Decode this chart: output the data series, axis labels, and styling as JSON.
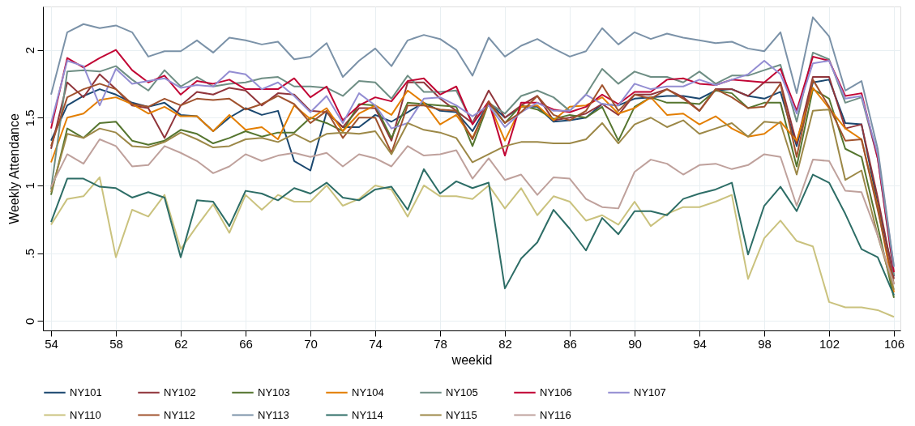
{
  "chart_data": {
    "type": "line",
    "xlabel": "weekid",
    "ylabel": "Weekly Attendance",
    "x": [
      54,
      55,
      56,
      57,
      58,
      59,
      60,
      61,
      62,
      63,
      64,
      65,
      66,
      67,
      68,
      69,
      70,
      71,
      72,
      73,
      74,
      75,
      76,
      77,
      78,
      79,
      80,
      81,
      82,
      83,
      84,
      85,
      86,
      87,
      88,
      89,
      90,
      91,
      92,
      93,
      94,
      95,
      96,
      97,
      98,
      99,
      100,
      101,
      102,
      103,
      104,
      105,
      106
    ],
    "xlim": [
      53.5,
      106.4
    ],
    "xticks": [
      54,
      58,
      62,
      66,
      70,
      74,
      78,
      82,
      86,
      90,
      94,
      98,
      102,
      106
    ],
    "ylim": [
      -0.07,
      2.32
    ],
    "yticks": [
      0,
      {
        "value": 0.5,
        "label": ".5"
      },
      1,
      1.5,
      2
    ],
    "grid": true,
    "legend": "bottom",
    "marker": "none",
    "line_style": "solid",
    "series": [
      {
        "name": "NY101",
        "color": "#1a476f",
        "values": [
          1.33,
          1.59,
          1.66,
          1.71,
          1.67,
          1.61,
          1.58,
          1.61,
          1.52,
          1.51,
          1.4,
          1.5,
          1.57,
          1.52,
          1.55,
          1.18,
          1.11,
          1.54,
          1.43,
          1.43,
          1.52,
          1.47,
          1.54,
          1.61,
          1.55,
          1.54,
          1.4,
          1.61,
          1.5,
          1.58,
          1.58,
          1.47,
          1.48,
          1.5,
          1.6,
          1.59,
          1.64,
          1.65,
          1.66,
          1.66,
          1.64,
          1.7,
          1.71,
          1.66,
          1.64,
          1.69,
          1.29,
          1.76,
          1.78,
          1.46,
          1.45,
          0.86,
          0.33
        ]
      },
      {
        "name": "NY102",
        "color": "#90353b",
        "values": [
          1.27,
          1.76,
          1.65,
          1.82,
          1.71,
          1.59,
          1.57,
          1.35,
          1.59,
          1.69,
          1.67,
          1.72,
          1.7,
          1.59,
          1.68,
          1.67,
          1.55,
          1.54,
          1.43,
          1.57,
          1.57,
          1.33,
          1.76,
          1.76,
          1.64,
          1.55,
          1.46,
          1.7,
          1.5,
          1.59,
          1.66,
          1.48,
          1.5,
          1.53,
          1.6,
          1.52,
          1.67,
          1.67,
          1.71,
          1.65,
          1.55,
          1.71,
          1.71,
          1.66,
          1.76,
          1.76,
          1.31,
          1.8,
          1.8,
          1.42,
          1.45,
          0.91,
          0.31
        ]
      },
      {
        "name": "NY103",
        "color": "#55752f",
        "values": [
          0.93,
          1.42,
          1.35,
          1.46,
          1.47,
          1.33,
          1.3,
          1.33,
          1.41,
          1.38,
          1.31,
          1.35,
          1.4,
          1.36,
          1.39,
          1.39,
          1.5,
          1.46,
          1.4,
          1.6,
          1.59,
          1.35,
          1.61,
          1.6,
          1.59,
          1.58,
          1.29,
          1.61,
          1.46,
          1.59,
          1.56,
          1.49,
          1.52,
          1.5,
          1.58,
          1.33,
          1.58,
          1.65,
          1.61,
          1.61,
          1.6,
          1.7,
          1.68,
          1.57,
          1.61,
          1.61,
          1.14,
          1.71,
          1.64,
          1.27,
          1.21,
          0.7,
          0.17
        ]
      },
      {
        "name": "NY104",
        "color": "#e37e00",
        "values": [
          1.17,
          1.5,
          1.53,
          1.63,
          1.65,
          1.6,
          1.53,
          1.58,
          1.51,
          1.51,
          1.4,
          1.52,
          1.41,
          1.43,
          1.34,
          1.59,
          1.49,
          1.57,
          1.4,
          1.53,
          1.59,
          1.52,
          1.7,
          1.61,
          1.45,
          1.52,
          1.35,
          1.61,
          1.33,
          1.58,
          1.59,
          1.48,
          1.58,
          1.59,
          1.65,
          1.53,
          1.57,
          1.65,
          1.52,
          1.53,
          1.45,
          1.51,
          1.42,
          1.36,
          1.38,
          1.47,
          1.33,
          1.72,
          1.57,
          1.42,
          1.34,
          0.84,
          0.21
        ]
      },
      {
        "name": "NY105",
        "color": "#6e8e84",
        "values": [
          0.97,
          1.84,
          1.85,
          1.84,
          1.88,
          1.78,
          1.7,
          1.85,
          1.73,
          1.8,
          1.73,
          1.75,
          1.76,
          1.79,
          1.8,
          1.73,
          1.73,
          1.72,
          1.66,
          1.77,
          1.76,
          1.64,
          1.81,
          1.69,
          1.69,
          1.7,
          1.46,
          1.61,
          1.53,
          1.66,
          1.7,
          1.65,
          1.55,
          1.67,
          1.86,
          1.75,
          1.84,
          1.8,
          1.8,
          1.76,
          1.84,
          1.75,
          1.81,
          1.81,
          1.85,
          1.89,
          1.47,
          1.98,
          1.93,
          1.61,
          1.65,
          1.2,
          0.34
        ]
      },
      {
        "name": "NY106",
        "color": "#c10534",
        "values": [
          1.42,
          1.94,
          1.87,
          1.94,
          2.0,
          1.85,
          1.76,
          1.81,
          1.67,
          1.77,
          1.75,
          1.78,
          1.71,
          1.71,
          1.71,
          1.79,
          1.65,
          1.73,
          1.48,
          1.59,
          1.65,
          1.62,
          1.77,
          1.79,
          1.67,
          1.73,
          1.45,
          1.62,
          1.22,
          1.61,
          1.61,
          1.56,
          1.54,
          1.58,
          1.67,
          1.6,
          1.69,
          1.69,
          1.78,
          1.79,
          1.75,
          1.74,
          1.78,
          1.77,
          1.76,
          1.86,
          1.55,
          1.95,
          1.92,
          1.66,
          1.68,
          1.2,
          0.36
        ]
      },
      {
        "name": "NY107",
        "color": "#938dd2",
        "values": [
          1.46,
          1.92,
          1.88,
          1.59,
          1.86,
          1.75,
          1.77,
          1.79,
          1.72,
          1.74,
          1.73,
          1.84,
          1.82,
          1.71,
          1.76,
          1.66,
          1.54,
          1.66,
          1.46,
          1.68,
          1.59,
          1.42,
          1.46,
          1.64,
          1.65,
          1.59,
          1.51,
          1.59,
          1.43,
          1.54,
          1.61,
          1.55,
          1.55,
          1.67,
          1.6,
          1.59,
          1.75,
          1.71,
          1.73,
          1.73,
          1.78,
          1.74,
          1.78,
          1.82,
          1.92,
          1.82,
          1.53,
          1.9,
          1.92,
          1.64,
          1.66,
          1.23,
          0.4
        ]
      },
      {
        "name": "NY110",
        "color": "#cac27e",
        "values": [
          0.71,
          0.9,
          0.92,
          1.06,
          0.47,
          0.82,
          0.77,
          0.93,
          0.53,
          0.7,
          0.86,
          0.65,
          0.93,
          0.82,
          0.93,
          0.88,
          0.88,
          1.0,
          0.85,
          0.9,
          1.0,
          0.97,
          0.77,
          1.0,
          0.92,
          0.92,
          0.9,
          1.0,
          0.83,
          0.98,
          0.78,
          0.92,
          0.88,
          0.74,
          0.78,
          0.71,
          0.88,
          0.7,
          0.79,
          0.84,
          0.84,
          0.88,
          0.93,
          0.31,
          0.61,
          0.74,
          0.59,
          0.55,
          0.14,
          0.1,
          0.1,
          0.08,
          0.03
        ]
      },
      {
        "name": "NY112",
        "color": "#a0522d",
        "values": [
          1.29,
          1.65,
          1.71,
          1.75,
          1.71,
          1.6,
          1.58,
          1.64,
          1.59,
          1.64,
          1.63,
          1.64,
          1.56,
          1.6,
          1.66,
          1.6,
          1.46,
          1.55,
          1.35,
          1.5,
          1.5,
          1.24,
          1.59,
          1.59,
          1.56,
          1.55,
          1.34,
          1.62,
          1.46,
          1.54,
          1.66,
          1.52,
          1.48,
          1.55,
          1.74,
          1.55,
          1.67,
          1.64,
          1.71,
          1.64,
          1.55,
          1.71,
          1.65,
          1.57,
          1.58,
          1.75,
          1.21,
          1.78,
          1.58,
          1.33,
          1.34,
          0.82,
          0.27
        ]
      },
      {
        "name": "NY113",
        "color": "#7b92a8",
        "values": [
          1.67,
          2.13,
          2.19,
          2.16,
          2.18,
          2.13,
          1.95,
          1.99,
          1.99,
          2.07,
          1.98,
          2.09,
          2.07,
          2.04,
          2.06,
          1.93,
          1.95,
          2.05,
          1.8,
          1.92,
          2.01,
          1.88,
          2.07,
          2.11,
          2.08,
          2.0,
          1.81,
          2.09,
          1.95,
          2.03,
          2.08,
          2.01,
          1.95,
          1.99,
          2.16,
          2.04,
          2.13,
          2.08,
          2.12,
          2.09,
          2.07,
          2.05,
          2.06,
          2.01,
          1.99,
          2.13,
          1.68,
          2.24,
          2.1,
          1.7,
          1.77,
          1.27,
          0.4
        ]
      },
      {
        "name": "NY114",
        "color": "#2d6d66",
        "values": [
          0.73,
          1.05,
          1.05,
          0.99,
          0.98,
          0.91,
          0.95,
          0.91,
          0.47,
          0.89,
          0.88,
          0.7,
          0.96,
          0.94,
          0.89,
          0.98,
          0.94,
          1.02,
          0.91,
          0.89,
          0.97,
          0.99,
          0.82,
          1.12,
          0.94,
          1.03,
          0.98,
          1.02,
          0.24,
          0.46,
          0.58,
          0.82,
          0.68,
          0.52,
          0.76,
          0.64,
          0.81,
          0.81,
          0.78,
          0.9,
          0.94,
          0.97,
          1.02,
          0.49,
          0.85,
          0.99,
          0.81,
          1.08,
          1.02,
          0.79,
          0.53,
          0.47,
          0.19
        ]
      },
      {
        "name": "NY115",
        "color": "#9c8847",
        "values": [
          0.95,
          1.38,
          1.35,
          1.42,
          1.39,
          1.29,
          1.28,
          1.32,
          1.39,
          1.34,
          1.28,
          1.29,
          1.34,
          1.35,
          1.32,
          1.38,
          1.32,
          1.38,
          1.39,
          1.38,
          1.4,
          1.23,
          1.46,
          1.41,
          1.39,
          1.35,
          1.17,
          1.23,
          1.29,
          1.32,
          1.32,
          1.31,
          1.31,
          1.34,
          1.46,
          1.31,
          1.45,
          1.5,
          1.43,
          1.48,
          1.38,
          1.42,
          1.46,
          1.36,
          1.47,
          1.46,
          1.08,
          1.55,
          1.56,
          1.04,
          1.11,
          0.63,
          0.23
        ]
      },
      {
        "name": "NY116",
        "color": "#bfa19c",
        "values": [
          0.99,
          1.23,
          1.16,
          1.34,
          1.29,
          1.14,
          1.15,
          1.29,
          1.24,
          1.18,
          1.09,
          1.14,
          1.23,
          1.18,
          1.22,
          1.24,
          1.21,
          1.24,
          1.14,
          1.23,
          1.2,
          1.14,
          1.29,
          1.22,
          1.23,
          1.26,
          1.05,
          1.2,
          1.04,
          1.08,
          0.93,
          1.06,
          1.05,
          0.9,
          0.84,
          0.83,
          1.1,
          1.19,
          1.16,
          1.08,
          1.15,
          1.16,
          1.12,
          1.15,
          1.23,
          1.21,
          0.85,
          1.19,
          1.18,
          0.96,
          0.95,
          0.63,
          0.27
        ]
      }
    ]
  }
}
